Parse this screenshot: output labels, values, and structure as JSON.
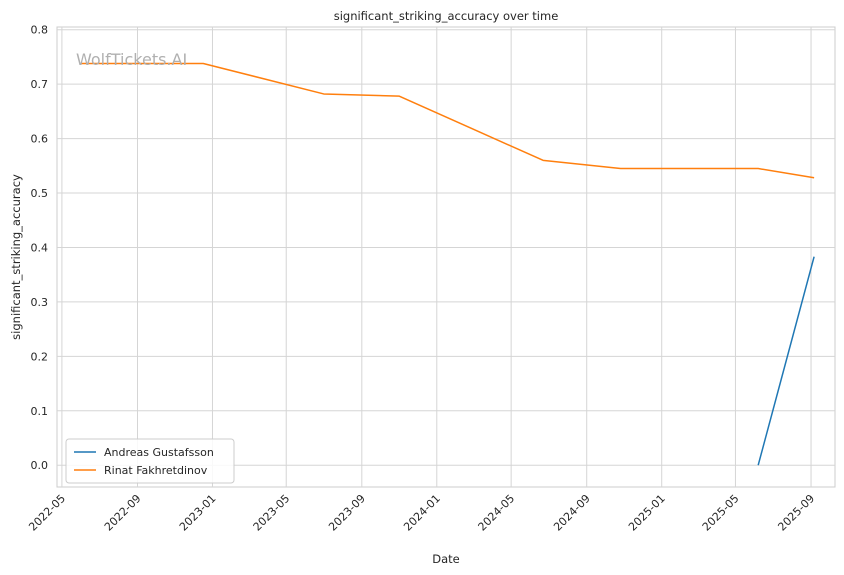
{
  "chart_data": {
    "type": "line",
    "title": "significant_striking_accuracy over time",
    "xlabel": "Date",
    "ylabel": "significant_striking_accuracy",
    "watermark": "WolfTickets.AI",
    "x_ticks": [
      "2022-05",
      "2022-09",
      "2023-01",
      "2023-05",
      "2023-09",
      "2024-01",
      "2024-05",
      "2024-09",
      "2025-01",
      "2025-05",
      "2025-09"
    ],
    "y_ticks": [
      "0.0",
      "0.1",
      "0.2",
      "0.3",
      "0.4",
      "0.5",
      "0.6",
      "0.7",
      "0.8"
    ],
    "xlim": [
      "2022-04-23",
      "2025-10-10"
    ],
    "ylim": [
      -0.04,
      0.805
    ],
    "grid": true,
    "legend_position": "lower-left",
    "series": [
      {
        "name": "Andreas Gustafsson",
        "color": "#1f77b4",
        "x": [
          "2025-06-07",
          "2025-09-06"
        ],
        "y": [
          0.0,
          0.383
        ]
      },
      {
        "name": "Rinat Fakhretdinov",
        "color": "#ff7f0e",
        "x": [
          "2022-06-01",
          "2022-12-17",
          "2023-07-01",
          "2023-11-01",
          "2024-06-22",
          "2024-10-26",
          "2025-06-07",
          "2025-09-06"
        ],
        "y": [
          0.738,
          0.738,
          0.682,
          0.678,
          0.56,
          0.545,
          0.545,
          0.528
        ]
      }
    ]
  }
}
